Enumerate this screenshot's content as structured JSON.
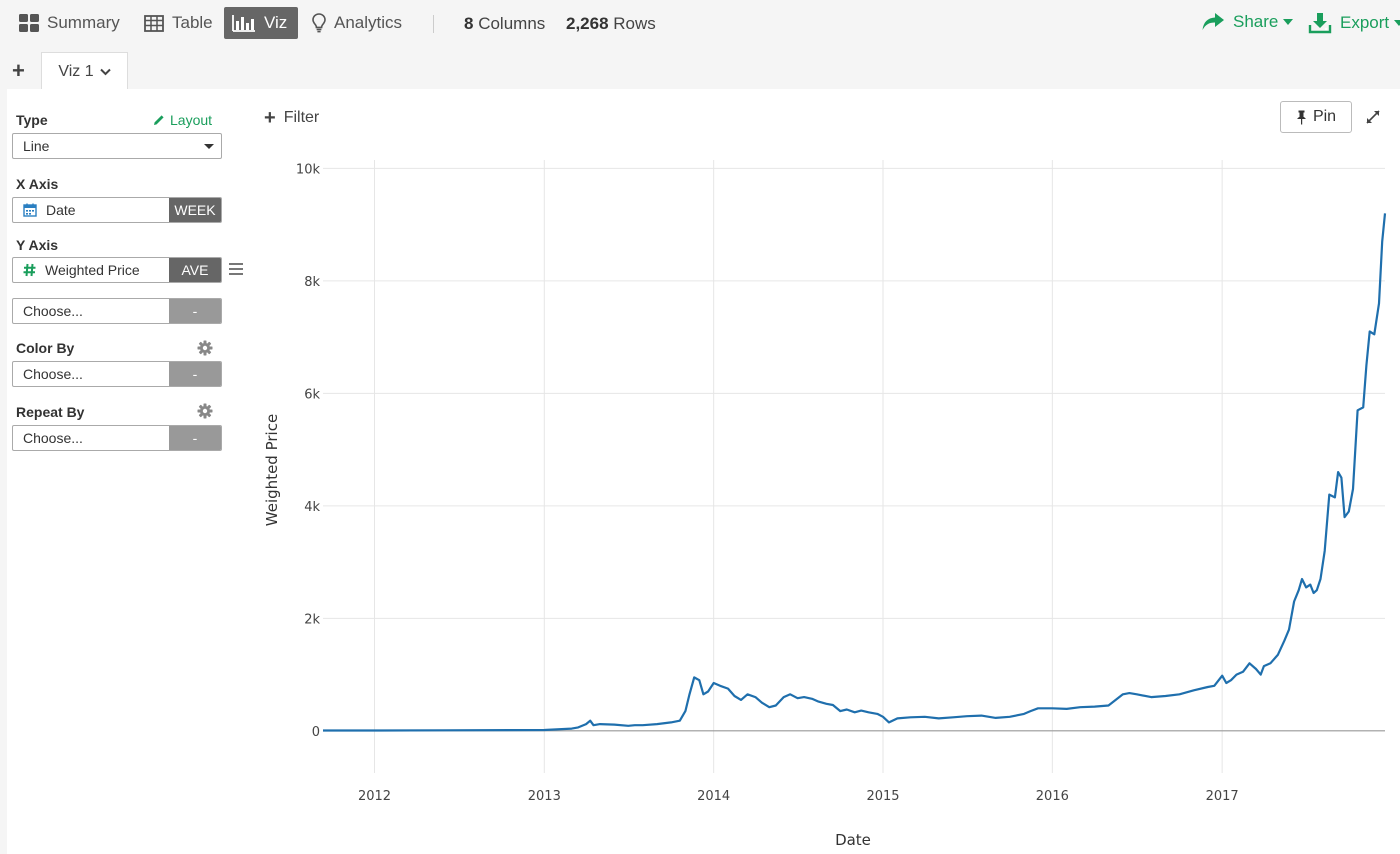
{
  "nav": {
    "tabs": [
      {
        "label": "Summary",
        "icon": "summary-grid-icon",
        "active": false
      },
      {
        "label": "Table",
        "icon": "table-icon",
        "active": false
      },
      {
        "label": "Viz",
        "icon": "bar-chart-icon",
        "active": true
      },
      {
        "label": "Analytics",
        "icon": "lightbulb-icon",
        "active": false
      }
    ],
    "columns_count": "8",
    "columns_label": "Columns",
    "rows_count": "2,268",
    "rows_label": "Rows",
    "share_label": "Share",
    "export_label": "Export"
  },
  "viz_tabs": {
    "add_label": "+",
    "items": [
      {
        "label": "Viz 1"
      }
    ]
  },
  "sidebar": {
    "type_label": "Type",
    "layout_label": "Layout",
    "type_value": "Line",
    "x_axis_label": "X Axis",
    "x_field": "Date",
    "x_agg": "WEEK",
    "y_axis_label": "Y Axis",
    "y_field": "Weighted Price",
    "y_agg": "AVE",
    "y2_placeholder": "Choose...",
    "y2_agg": "-",
    "color_by_label": "Color By",
    "color_placeholder": "Choose...",
    "color_agg": "-",
    "repeat_by_label": "Repeat By",
    "repeat_placeholder": "Choose...",
    "repeat_agg": "-"
  },
  "chart_header": {
    "filter_label": "Filter",
    "pin_label": "Pin"
  },
  "colors": {
    "accent": "#1a9e5c",
    "line": "#1f6fad"
  },
  "chart_data": {
    "type": "line",
    "xlabel": "Date",
    "ylabel": "Weighted Price",
    "x_ticks": [
      "2012",
      "2013",
      "2014",
      "2015",
      "2016",
      "2017"
    ],
    "y_ticks": [
      "0",
      "2k",
      "4k",
      "6k",
      "8k",
      "10k"
    ],
    "ylim": [
      -750,
      10150
    ],
    "xlim": [
      "2011-09-12",
      "2017-12-18"
    ],
    "grid": true,
    "series": [
      {
        "x": [
          "2011-09-12",
          "2012-01-01",
          "2012-06-01",
          "2013-01-01",
          "2013-03-01",
          "2013-03-15",
          "2013-04-01",
          "2013-04-10",
          "2013-04-17",
          "2013-05-01",
          "2013-06-01",
          "2013-07-01",
          "2013-07-15",
          "2013-08-01",
          "2013-09-01",
          "2013-10-01",
          "2013-10-20",
          "2013-11-01",
          "2013-11-10",
          "2013-11-20",
          "2013-12-01",
          "2013-12-10",
          "2013-12-20",
          "2014-01-01",
          "2014-01-15",
          "2014-02-01",
          "2014-02-15",
          "2014-03-01",
          "2014-03-15",
          "2014-04-01",
          "2014-04-15",
          "2014-05-01",
          "2014-05-15",
          "2014-06-01",
          "2014-06-15",
          "2014-07-01",
          "2014-07-15",
          "2014-08-01",
          "2014-08-15",
          "2014-09-01",
          "2014-09-15",
          "2014-10-01",
          "2014-10-15",
          "2014-11-01",
          "2014-11-15",
          "2014-12-01",
          "2014-12-20",
          "2015-01-01",
          "2015-01-14",
          "2015-02-01",
          "2015-03-01",
          "2015-04-01",
          "2015-05-01",
          "2015-06-01",
          "2015-07-01",
          "2015-08-01",
          "2015-09-01",
          "2015-10-01",
          "2015-11-01",
          "2015-11-15",
          "2015-12-01",
          "2016-01-01",
          "2016-02-01",
          "2016-03-01",
          "2016-04-01",
          "2016-05-01",
          "2016-06-01",
          "2016-06-15",
          "2016-07-01",
          "2016-08-01",
          "2016-09-01",
          "2016-10-01",
          "2016-11-01",
          "2016-12-01",
          "2016-12-15",
          "2017-01-01",
          "2017-01-10",
          "2017-01-20",
          "2017-02-01",
          "2017-02-15",
          "2017-03-01",
          "2017-03-15",
          "2017-03-25",
          "2017-04-01",
          "2017-04-15",
          "2017-05-01",
          "2017-05-15",
          "2017-05-25",
          "2017-06-05",
          "2017-06-15",
          "2017-06-22",
          "2017-07-01",
          "2017-07-10",
          "2017-07-17",
          "2017-07-24",
          "2017-08-01",
          "2017-08-10",
          "2017-08-20",
          "2017-09-01",
          "2017-09-08",
          "2017-09-15",
          "2017-09-22",
          "2017-10-01",
          "2017-10-10",
          "2017-10-20",
          "2017-11-01",
          "2017-11-08",
          "2017-11-15",
          "2017-11-25",
          "2017-12-05",
          "2017-12-12",
          "2017-12-18"
        ],
        "y": [
          5,
          6,
          10,
          15,
          40,
          60,
          120,
          180,
          100,
          120,
          110,
          90,
          100,
          100,
          120,
          150,
          180,
          350,
          650,
          950,
          900,
          650,
          700,
          850,
          800,
          750,
          620,
          550,
          650,
          600,
          500,
          420,
          450,
          600,
          650,
          580,
          600,
          570,
          520,
          480,
          460,
          350,
          380,
          330,
          360,
          330,
          300,
          250,
          150,
          220,
          240,
          250,
          220,
          240,
          260,
          270,
          230,
          250,
          300,
          350,
          400,
          400,
          390,
          420,
          430,
          450,
          650,
          670,
          650,
          600,
          620,
          650,
          720,
          780,
          800,
          980,
          850,
          900,
          1000,
          1050,
          1200,
          1100,
          1000,
          1150,
          1200,
          1350,
          1600,
          1800,
          2300,
          2500,
          2700,
          2550,
          2600,
          2450,
          2500,
          2700,
          3200,
          4200,
          4150,
          4600,
          4500,
          3800,
          3900,
          4300,
          5700,
          5750,
          6500,
          7100,
          7050,
          7600,
          8700,
          9200
        ]
      }
    ]
  }
}
